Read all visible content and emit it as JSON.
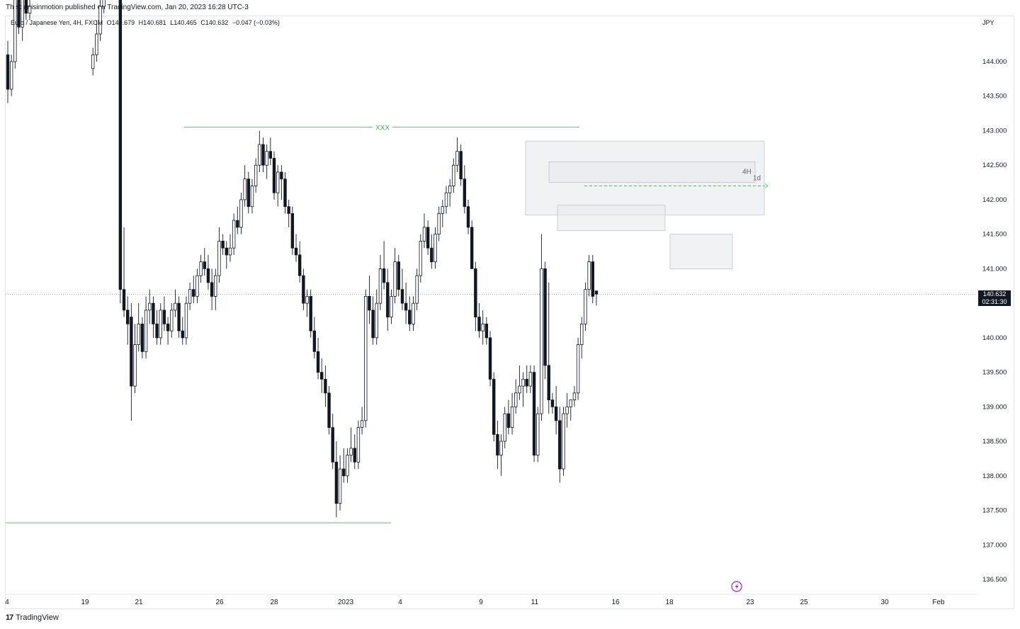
{
  "header": {
    "published_by": "Theplanisinmotion published on TradingView.com, Jan 20, 2023 16:28 UTC-3"
  },
  "legend": {
    "symbol": "Euro / Japanese Yen, 4H, FXCM",
    "open": "O140.679",
    "high": "H140.681",
    "low": "L140.465",
    "close": "C140.632",
    "change": "−0.047 (−0.03%)"
  },
  "axis": {
    "currency": "JPY",
    "current_price": "140.632",
    "countdown": "02:31:30"
  },
  "footer": {
    "brand": "TradingView"
  },
  "annotations": {
    "resistance_label": "XXX",
    "zone_4h_label": "4H",
    "zone_1d_label": "1d"
  },
  "colors": {
    "up_body": "#ffffff",
    "down_body": "#131722",
    "wick": "#131722",
    "green_line": "#4caf50",
    "zone_fill": "#e8e9ec",
    "price_tag_bg": "#131722",
    "alert_icon": "#9c27b0"
  },
  "chart_data": {
    "type": "candlestick",
    "title": "",
    "ylim": [
      136.2,
      145.5
    ],
    "y_ticks": [
      136.5,
      137.0,
      137.5,
      138.0,
      138.5,
      139.0,
      139.5,
      140.0,
      140.5,
      141.0,
      141.5,
      142.0,
      142.5,
      143.0,
      143.5,
      144.0
    ],
    "y_tick_labels": [
      "136.500",
      "137.000",
      "137.500",
      "138.000",
      "138.500",
      "139.000",
      "139.500",
      "140.000",
      "140.500",
      "141.000",
      "141.500",
      "142.000",
      "142.500",
      "143.000",
      "143.500",
      "144.000"
    ],
    "x_tick_labels": [
      "4",
      "19",
      "21",
      "26",
      "28",
      "2023",
      "4",
      "9",
      "11",
      "16",
      "18",
      "23",
      "25",
      "30",
      "Feb"
    ],
    "grid": false,
    "candles": [
      [
        144.1,
        144.3,
        143.4,
        143.6
      ],
      [
        143.6,
        144.1,
        143.5,
        144.0
      ],
      [
        144.0,
        145.0,
        143.9,
        144.9
      ],
      [
        144.9,
        145.2,
        144.4,
        144.5
      ],
      [
        144.5,
        145.0,
        144.3,
        144.9
      ],
      [
        144.9,
        145.3,
        144.6,
        144.7
      ],
      [
        144.7,
        145.1,
        144.6,
        144.8
      ],
      [
        143.9,
        144.2,
        143.8,
        144.1
      ],
      [
        144.1,
        144.6,
        144.0,
        144.4
      ],
      [
        144.4,
        145.0,
        144.3,
        144.8
      ],
      [
        144.8,
        145.3,
        144.7,
        145.2
      ],
      [
        145.2,
        145.4,
        140.5,
        140.7
      ],
      [
        140.7,
        141.6,
        140.3,
        140.4
      ],
      [
        140.4,
        140.6,
        139.9,
        140.2
      ],
      [
        140.3,
        140.5,
        138.8,
        139.3
      ],
      [
        139.3,
        140.2,
        139.2,
        139.9
      ],
      [
        139.9,
        140.5,
        139.8,
        140.2
      ],
      [
        140.2,
        140.3,
        139.7,
        139.8
      ],
      [
        139.8,
        140.6,
        139.7,
        140.4
      ],
      [
        140.4,
        140.7,
        140.2,
        140.5
      ],
      [
        140.5,
        140.6,
        140.0,
        140.2
      ],
      [
        140.2,
        140.4,
        139.9,
        140.0
      ],
      [
        140.0,
        140.5,
        139.9,
        140.4
      ],
      [
        140.4,
        140.6,
        140.1,
        140.2
      ],
      [
        140.2,
        140.3,
        139.9,
        140.1
      ],
      [
        140.1,
        140.5,
        140.0,
        140.4
      ],
      [
        140.4,
        140.7,
        140.3,
        140.5
      ],
      [
        140.5,
        140.6,
        140.0,
        140.1
      ],
      [
        140.1,
        140.3,
        139.9,
        140.0
      ],
      [
        140.0,
        140.6,
        139.9,
        140.5
      ],
      [
        140.5,
        140.8,
        140.4,
        140.7
      ],
      [
        140.7,
        140.9,
        140.5,
        140.6
      ],
      [
        140.6,
        141.0,
        140.5,
        140.9
      ],
      [
        140.9,
        141.2,
        140.8,
        141.1
      ],
      [
        141.1,
        141.3,
        140.9,
        141.0
      ],
      [
        141.0,
        141.2,
        140.7,
        140.8
      ],
      [
        140.8,
        141.0,
        140.4,
        140.6
      ],
      [
        140.6,
        141.0,
        140.4,
        140.9
      ],
      [
        140.9,
        141.6,
        140.8,
        141.4
      ],
      [
        141.4,
        141.5,
        141.2,
        141.3
      ],
      [
        141.3,
        141.4,
        141.0,
        141.2
      ],
      [
        141.2,
        141.5,
        141.1,
        141.3
      ],
      [
        141.3,
        141.8,
        141.2,
        141.7
      ],
      [
        141.7,
        141.9,
        141.5,
        141.6
      ],
      [
        141.6,
        142.1,
        141.5,
        142.0
      ],
      [
        142.0,
        142.5,
        141.9,
        142.3
      ],
      [
        142.3,
        142.4,
        141.8,
        141.9
      ],
      [
        141.9,
        142.3,
        141.8,
        142.2
      ],
      [
        142.2,
        142.6,
        142.1,
        142.5
      ],
      [
        142.5,
        143.0,
        142.4,
        142.8
      ],
      [
        142.8,
        142.9,
        142.4,
        142.5
      ],
      [
        142.5,
        142.8,
        142.3,
        142.7
      ],
      [
        142.7,
        142.9,
        142.5,
        142.6
      ],
      [
        142.6,
        142.7,
        142.0,
        142.1
      ],
      [
        142.1,
        142.5,
        141.9,
        142.4
      ],
      [
        142.4,
        142.5,
        142.0,
        142.3
      ],
      [
        142.3,
        142.4,
        141.8,
        141.9
      ],
      [
        141.9,
        142.0,
        141.6,
        141.8
      ],
      [
        141.8,
        141.9,
        141.2,
        141.3
      ],
      [
        141.3,
        141.5,
        141.1,
        141.2
      ],
      [
        141.2,
        141.4,
        140.8,
        140.9
      ],
      [
        140.9,
        141.0,
        140.4,
        140.5
      ],
      [
        140.5,
        140.7,
        140.3,
        140.6
      ],
      [
        140.6,
        140.7,
        140.0,
        140.1
      ],
      [
        140.1,
        140.3,
        139.7,
        139.8
      ],
      [
        139.8,
        140.0,
        139.4,
        139.5
      ],
      [
        139.5,
        139.7,
        139.2,
        139.4
      ],
      [
        139.4,
        139.6,
        139.0,
        139.2
      ],
      [
        139.2,
        139.3,
        138.6,
        138.7
      ],
      [
        138.7,
        138.9,
        138.1,
        138.2
      ],
      [
        138.2,
        138.5,
        137.4,
        137.6
      ],
      [
        137.6,
        138.3,
        137.5,
        138.1
      ],
      [
        138.1,
        138.4,
        137.9,
        138.0
      ],
      [
        138.0,
        138.4,
        137.9,
        138.3
      ],
      [
        138.3,
        138.7,
        138.2,
        138.4
      ],
      [
        138.4,
        138.6,
        138.1,
        138.2
      ],
      [
        138.2,
        138.8,
        138.1,
        138.7
      ],
      [
        138.7,
        139.0,
        138.6,
        138.8
      ],
      [
        138.8,
        140.7,
        138.7,
        140.6
      ],
      [
        140.6,
        140.9,
        140.2,
        140.4
      ],
      [
        140.4,
        140.6,
        139.9,
        140.0
      ],
      [
        140.0,
        140.7,
        139.9,
        140.5
      ],
      [
        140.5,
        141.2,
        140.4,
        141.0
      ],
      [
        141.0,
        141.4,
        140.7,
        140.8
      ],
      [
        140.8,
        141.0,
        140.1,
        140.3
      ],
      [
        140.3,
        140.7,
        140.2,
        140.6
      ],
      [
        140.6,
        141.3,
        140.5,
        141.1
      ],
      [
        141.1,
        141.2,
        140.6,
        140.7
      ],
      [
        140.7,
        141.0,
        140.4,
        140.5
      ],
      [
        140.5,
        140.8,
        140.2,
        140.4
      ],
      [
        140.4,
        140.6,
        140.1,
        140.2
      ],
      [
        140.2,
        140.6,
        140.1,
        140.5
      ],
      [
        140.5,
        141.0,
        140.4,
        140.9
      ],
      [
        140.9,
        141.5,
        140.8,
        141.4
      ],
      [
        141.4,
        141.8,
        141.3,
        141.6
      ],
      [
        141.6,
        141.7,
        141.2,
        141.3
      ],
      [
        141.3,
        141.5,
        141.0,
        141.1
      ],
      [
        141.1,
        141.6,
        141.0,
        141.5
      ],
      [
        141.5,
        141.9,
        141.4,
        141.8
      ],
      [
        141.8,
        142.0,
        141.6,
        141.9
      ],
      [
        141.9,
        142.2,
        141.8,
        142.1
      ],
      [
        142.1,
        142.3,
        141.9,
        142.2
      ],
      [
        142.2,
        142.6,
        142.1,
        142.5
      ],
      [
        142.5,
        142.9,
        142.4,
        142.7
      ],
      [
        142.7,
        142.8,
        142.2,
        142.3
      ],
      [
        142.3,
        142.5,
        141.8,
        141.9
      ],
      [
        141.9,
        142.0,
        141.5,
        141.6
      ],
      [
        141.6,
        141.7,
        141.0,
        141.0
      ],
      [
        141.0,
        141.1,
        140.1,
        140.3
      ],
      [
        140.3,
        140.5,
        140.0,
        140.1
      ],
      [
        140.1,
        140.4,
        139.9,
        140.2
      ],
      [
        140.2,
        140.3,
        139.9,
        140.0
      ],
      [
        140.0,
        140.1,
        139.3,
        139.4
      ],
      [
        139.4,
        139.5,
        138.5,
        138.6
      ],
      [
        138.6,
        138.8,
        138.1,
        138.3
      ],
      [
        138.3,
        138.6,
        138.0,
        138.5
      ],
      [
        138.5,
        139.0,
        138.4,
        138.9
      ],
      [
        138.9,
        139.1,
        138.6,
        138.7
      ],
      [
        138.7,
        139.2,
        138.6,
        139.0
      ],
      [
        139.0,
        139.4,
        138.9,
        139.2
      ],
      [
        139.2,
        139.6,
        139.1,
        139.3
      ],
      [
        139.3,
        139.5,
        139.0,
        139.4
      ],
      [
        139.4,
        139.6,
        139.2,
        139.3
      ],
      [
        139.3,
        139.6,
        139.2,
        139.5
      ],
      [
        139.5,
        139.6,
        138.2,
        138.3
      ],
      [
        138.3,
        139.0,
        138.2,
        138.9
      ],
      [
        138.9,
        141.5,
        138.8,
        141.0
      ],
      [
        141.0,
        141.1,
        139.4,
        139.6
      ],
      [
        139.6,
        140.8,
        138.9,
        139.1
      ],
      [
        139.1,
        139.2,
        138.9,
        139.0
      ],
      [
        139.0,
        139.3,
        138.6,
        138.8
      ],
      [
        138.8,
        139.0,
        137.9,
        138.1
      ],
      [
        138.1,
        139.0,
        138.0,
        138.9
      ],
      [
        138.9,
        139.2,
        138.7,
        139.0
      ],
      [
        139.0,
        139.1,
        138.8,
        139.1
      ],
      [
        139.1,
        139.3,
        139.0,
        139.2
      ],
      [
        139.2,
        140.0,
        139.1,
        139.9
      ],
      [
        139.9,
        140.3,
        139.7,
        140.2
      ],
      [
        140.2,
        140.8,
        140.1,
        140.7
      ],
      [
        140.7,
        141.2,
        140.6,
        141.1
      ],
      [
        141.1,
        141.2,
        140.5,
        140.6
      ],
      [
        140.679,
        140.681,
        140.465,
        140.632
      ]
    ],
    "overlays": [
      {
        "type": "hline",
        "price": 143.05,
        "label": "XXX"
      },
      {
        "type": "hline",
        "price": 137.32
      },
      {
        "type": "zone",
        "top": 142.85,
        "bottom": 141.78
      },
      {
        "type": "zone",
        "top": 142.55,
        "bottom": 142.25,
        "label": "4H"
      },
      {
        "type": "zone",
        "top": 141.92,
        "bottom": 141.55
      },
      {
        "type": "zone",
        "top": 141.5,
        "bottom": 141.0
      },
      {
        "type": "dashed-line",
        "price": 142.2,
        "label": "1d"
      },
      {
        "type": "dotted-line",
        "price": 140.632
      }
    ]
  }
}
